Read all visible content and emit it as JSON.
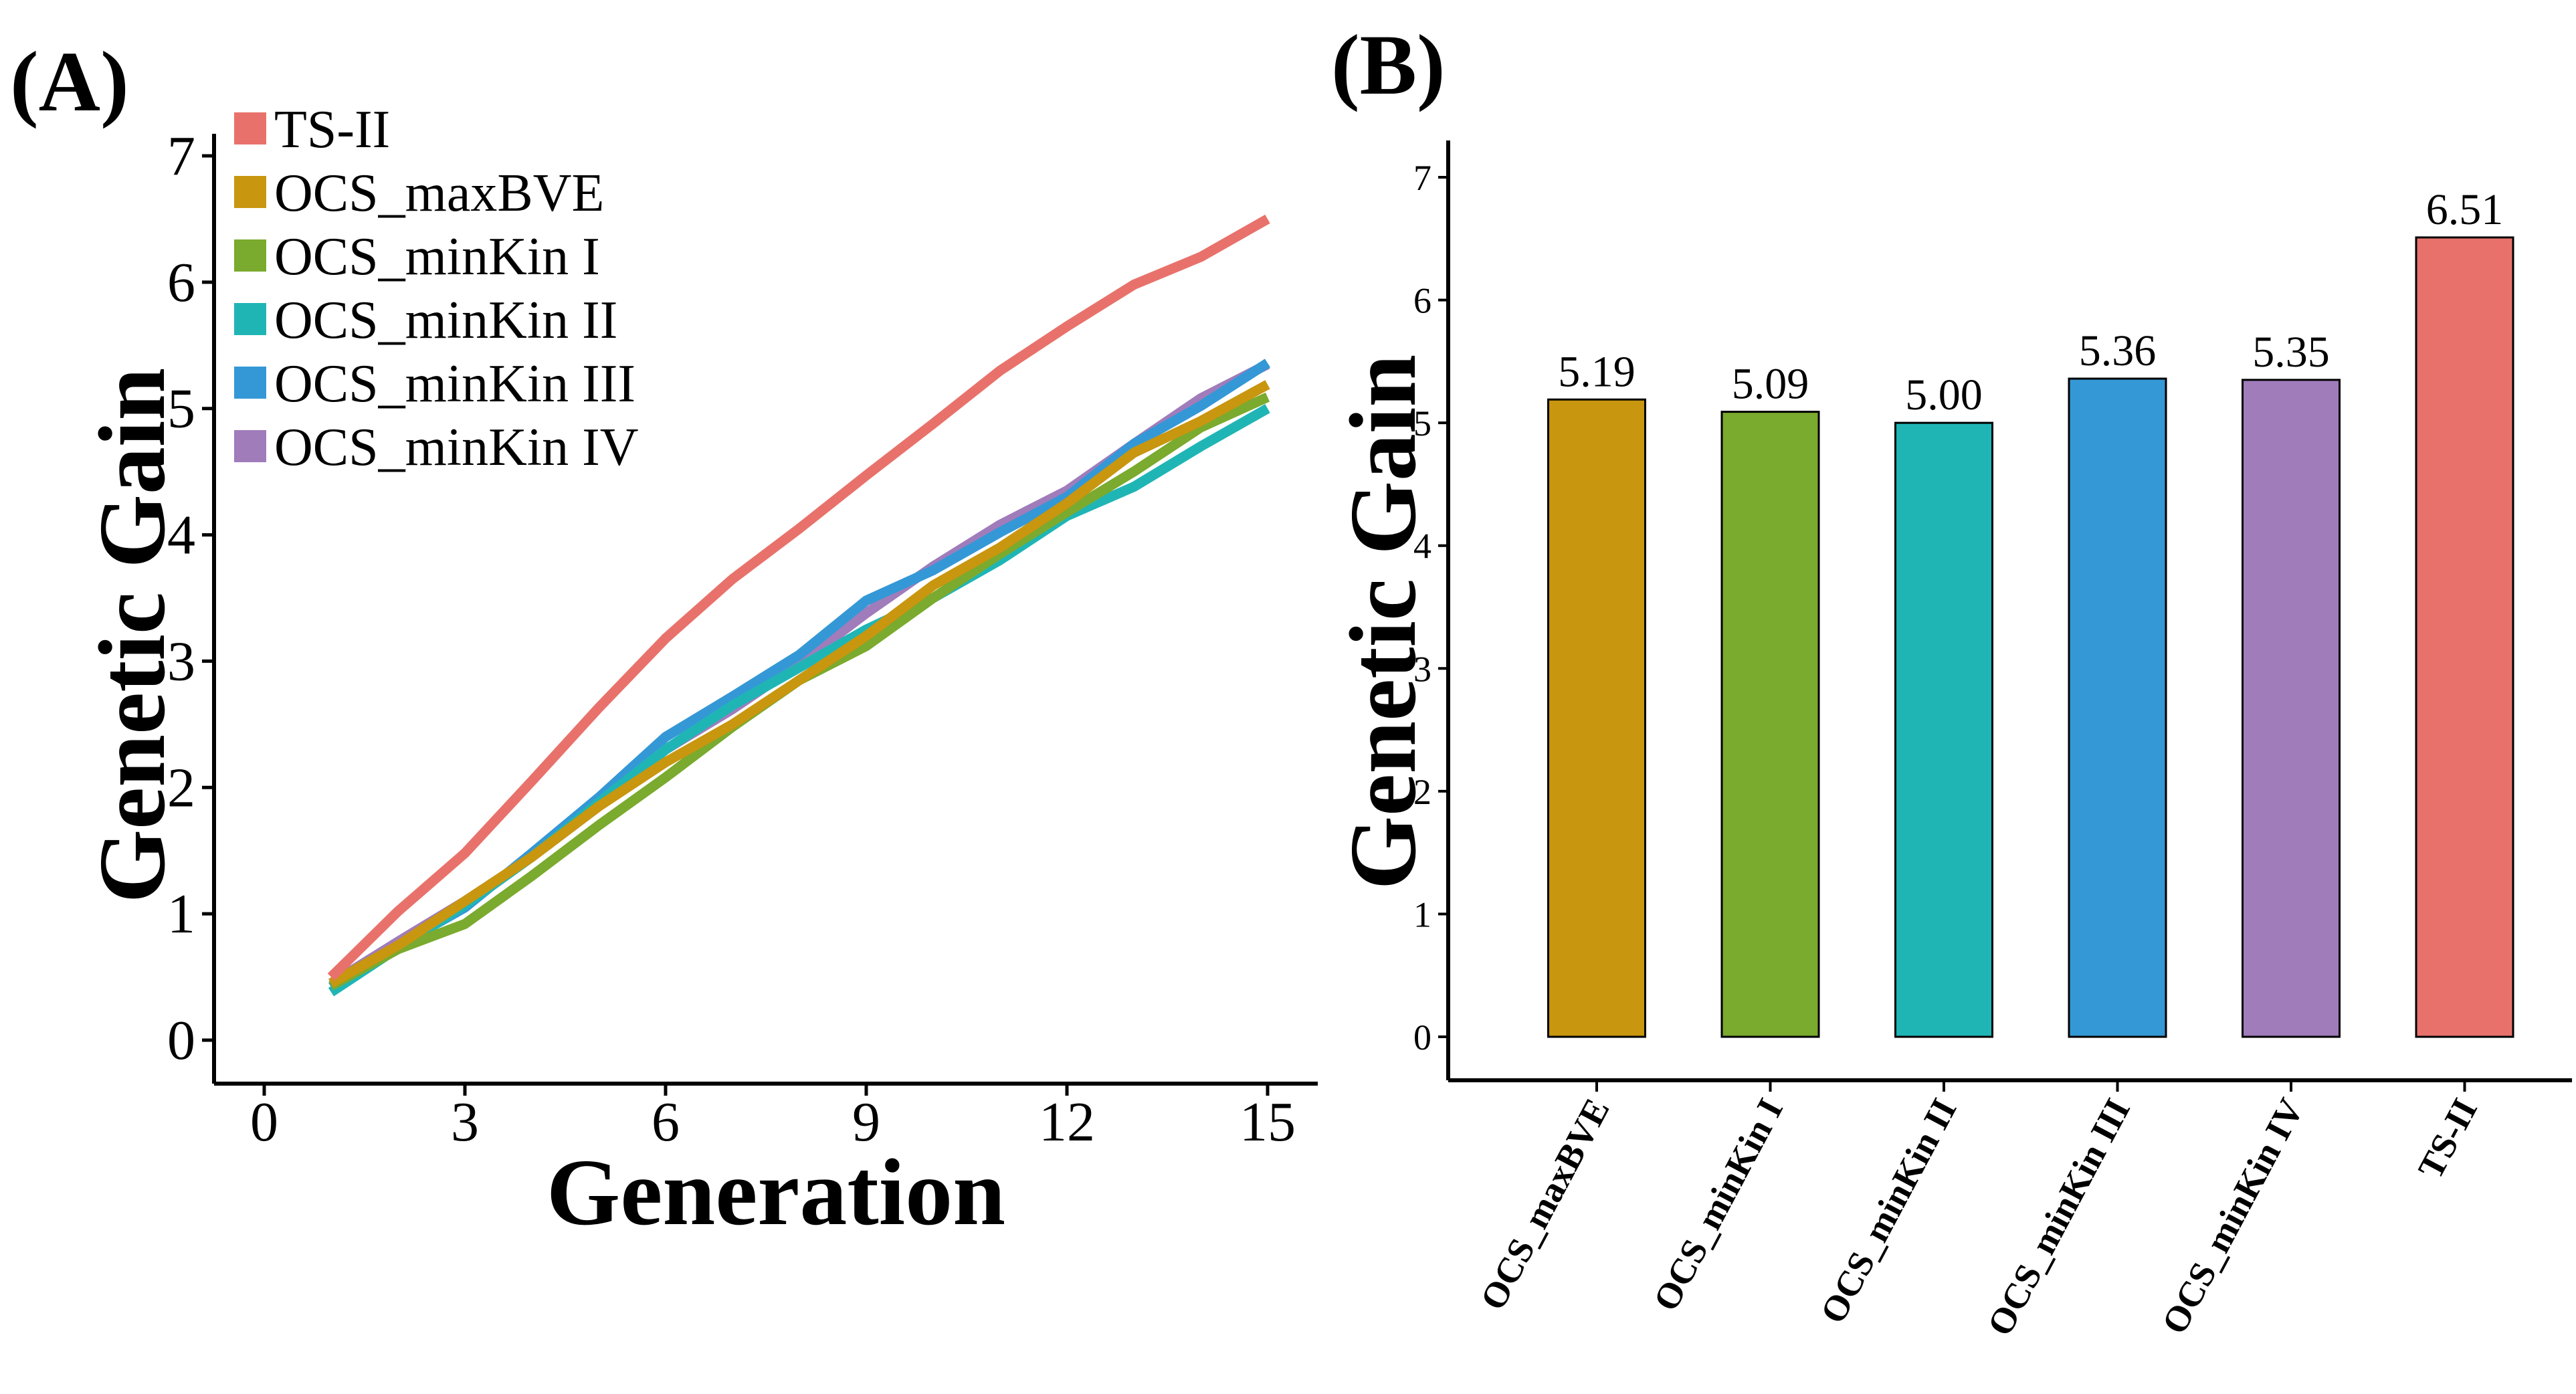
{
  "chart_data": [
    {
      "panel": "(A)",
      "type": "line",
      "xlabel": "Generation",
      "ylabel": "Genetic Gain",
      "xlim": [
        0,
        15
      ],
      "ylim": [
        0,
        7
      ],
      "xticks": [
        "0",
        "3",
        "6",
        "9",
        "12",
        "15"
      ],
      "yticks": [
        "0",
        "1",
        "2",
        "3",
        "4",
        "5",
        "6",
        "7"
      ],
      "grid": false,
      "legend_position": "top-left",
      "x": [
        1,
        2,
        3,
        4,
        5,
        6,
        7,
        8,
        9,
        10,
        11,
        12,
        13,
        14,
        15
      ],
      "series": [
        {
          "name": "TS-II",
          "color": "#e8726b",
          "values": [
            0.5,
            1.02,
            1.48,
            2.05,
            2.63,
            3.18,
            3.65,
            4.05,
            4.47,
            4.88,
            5.3,
            5.65,
            5.98,
            6.2,
            6.5
          ]
        },
        {
          "name": "OCS_maxBVE",
          "color": "#c8960f",
          "values": [
            0.45,
            0.75,
            1.1,
            1.45,
            1.85,
            2.2,
            2.5,
            2.85,
            3.2,
            3.6,
            3.9,
            4.25,
            4.65,
            4.9,
            5.19
          ]
        },
        {
          "name": "OCS_minKin I",
          "color": "#7aaa2e",
          "values": [
            0.43,
            0.72,
            0.92,
            1.3,
            1.7,
            2.08,
            2.48,
            2.85,
            3.12,
            3.5,
            3.85,
            4.18,
            4.5,
            4.85,
            5.09
          ]
        },
        {
          "name": "OCS_minKin II",
          "color": "#20b5b5",
          "values": [
            0.38,
            0.73,
            1.07,
            1.45,
            1.88,
            2.3,
            2.65,
            2.95,
            3.25,
            3.5,
            3.8,
            4.15,
            4.38,
            4.7,
            5.0
          ]
        },
        {
          "name": "OCS_minKin III",
          "color": "#3498d6",
          "values": [
            0.42,
            0.75,
            1.05,
            1.48,
            1.92,
            2.4,
            2.72,
            3.05,
            3.48,
            3.72,
            4.02,
            4.3,
            4.72,
            5.02,
            5.36
          ]
        },
        {
          "name": "OCS_minKin IV",
          "color": "#a07cbb",
          "values": [
            0.45,
            0.78,
            1.1,
            1.45,
            1.85,
            2.3,
            2.62,
            2.98,
            3.38,
            3.75,
            4.08,
            4.35,
            4.72,
            5.08,
            5.35
          ]
        }
      ]
    },
    {
      "panel": "(B)",
      "type": "bar",
      "ylabel": "Genetic Gain",
      "ylim": [
        0,
        7
      ],
      "yticks": [
        "0",
        "1",
        "2",
        "3",
        "4",
        "5",
        "6",
        "7"
      ],
      "grid": false,
      "categories": [
        "OCS_maxBVE",
        "OCS_minKin I",
        "OCS_minKin II",
        "OCS_minKin III",
        "OCS_minKin IV",
        "TS-II"
      ],
      "values": [
        5.19,
        5.09,
        5.0,
        5.36,
        5.35,
        6.51
      ],
      "data_labels": [
        "5.19",
        "5.09",
        "5.00",
        "5.36",
        "5.35",
        "6.51"
      ],
      "colors": [
        "#c8960f",
        "#7aaa2e",
        "#20b5b5",
        "#3498d6",
        "#a07cbb",
        "#e8726b"
      ]
    }
  ]
}
